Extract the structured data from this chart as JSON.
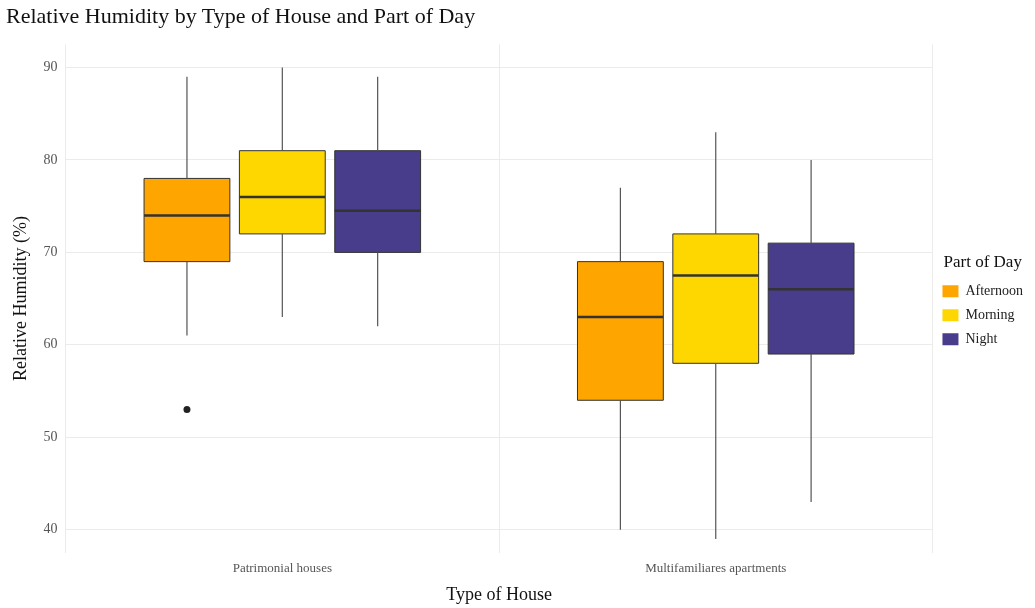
{
  "chart_data": {
    "type": "box",
    "title": "Relative Humidity by Type of House and Part of Day",
    "xlabel": "Type of House",
    "ylabel": "Relative Humidity (%)",
    "legend_title": "Part of Day",
    "legend": "right",
    "grid": true,
    "categories": [
      "Patrimonial houses",
      "Multifamiliares apartments"
    ],
    "ylim": [
      37.5,
      92.5
    ],
    "yticks": [
      40,
      50,
      60,
      70,
      80,
      90
    ],
    "series": [
      {
        "name": "Afternoon",
        "color": "#ffa500",
        "boxes": [
          {
            "low": 61,
            "q1": 69,
            "median": 74,
            "q3": 78,
            "high": 89,
            "outliers": [
              53
            ]
          },
          {
            "low": 40,
            "q1": 54,
            "median": 63,
            "q3": 69,
            "high": 77
          }
        ]
      },
      {
        "name": "Morning",
        "color": "#ffd700",
        "boxes": [
          {
            "low": 63,
            "q1": 72,
            "median": 76,
            "q3": 81,
            "high": 90
          },
          {
            "low": 39,
            "q1": 58,
            "median": 67.5,
            "q3": 72,
            "high": 83
          }
        ]
      },
      {
        "name": "Night",
        "color": "#483d8b",
        "boxes": [
          {
            "low": 62,
            "q1": 70,
            "median": 74.5,
            "q3": 81,
            "high": 89
          },
          {
            "low": 43,
            "q1": 59,
            "median": 66,
            "q3": 71,
            "high": 80
          }
        ]
      }
    ]
  }
}
